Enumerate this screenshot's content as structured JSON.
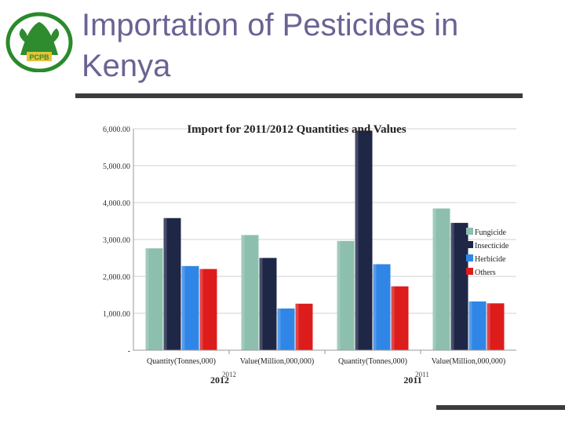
{
  "slide": {
    "title": "Importation of Pesticides in Kenya",
    "logo_text": "PCPB",
    "logo_icon": "pcpb-logo-icon"
  },
  "colors": {
    "title": "#6a6394",
    "rule": "#3c3c3c",
    "Fungicide": "#8cbfae",
    "Insecticide": "#1f2747",
    "Herbicide": "#2f86e6",
    "Others": "#dd1c1c"
  },
  "chart_data": {
    "type": "bar",
    "title": "Import for 2011/2012 Quantities and Values",
    "xlabel": "",
    "ylabel": "",
    "ylim": [
      0,
      6000
    ],
    "yticks": [
      "6,000.00",
      "5,000.00",
      "4,000.00",
      "3,000.00",
      "2,000.00",
      "1,000.00",
      "-"
    ],
    "grid": true,
    "legend_position": "right",
    "categories": [
      "Quantity(Tonnes,000)",
      "Value(Million,000,000)",
      "Quantity(Tonnes,000)",
      "Value(Million,000,000)"
    ],
    "groups": [
      {
        "label": "2012",
        "small_label": "2012"
      },
      {
        "label": "2011",
        "small_label": "2011"
      }
    ],
    "series": [
      {
        "name": "Fungicide",
        "values": [
          2760,
          3120,
          2960,
          3840
        ]
      },
      {
        "name": "Insecticide",
        "values": [
          3580,
          2500,
          5950,
          3450
        ]
      },
      {
        "name": "Herbicide",
        "values": [
          2280,
          1130,
          2330,
          1320
        ]
      },
      {
        "name": "Others",
        "values": [
          2200,
          1260,
          1730,
          1270
        ]
      }
    ]
  }
}
